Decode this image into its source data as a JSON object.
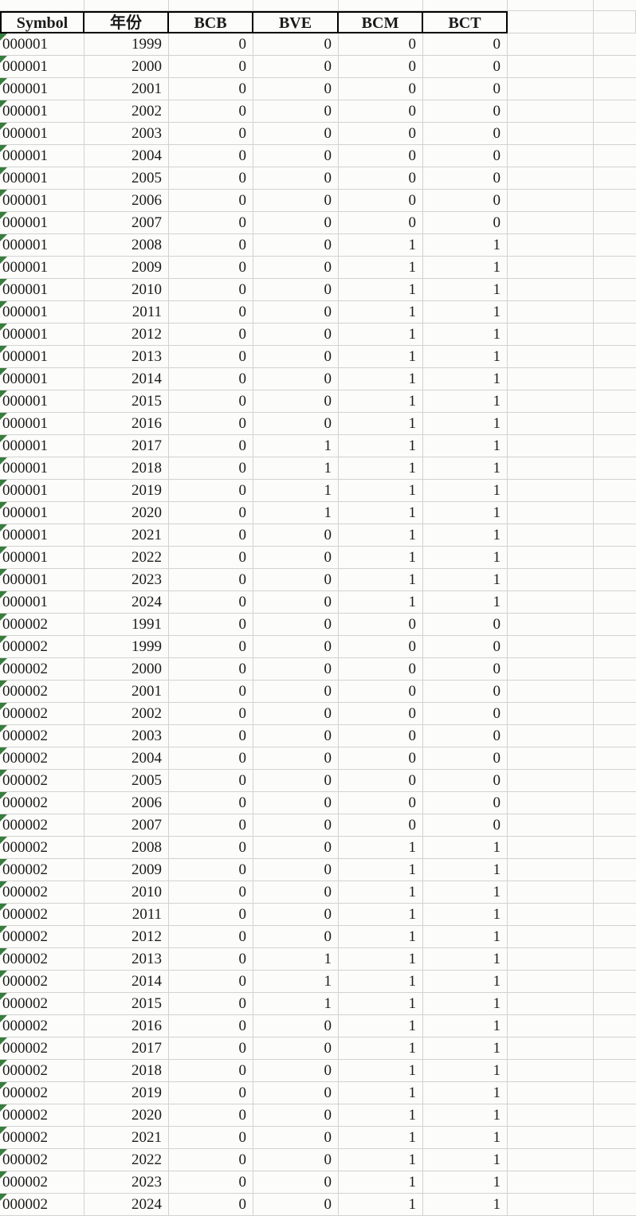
{
  "app": {
    "kind": "spreadsheet-grid"
  },
  "colors": {
    "gridline": "#d2d2d0",
    "header_border": "#000000",
    "cell_background": "#fcfcfb",
    "text": "#1b1b1b",
    "error_indicator_green": "#377d3c"
  },
  "icons": {
    "symbol_cell_corner": "green-triangle-icon"
  },
  "table": {
    "columns": [
      {
        "label": "Symbol"
      },
      {
        "label": "年份"
      },
      {
        "label": "BCB"
      },
      {
        "label": "BVE"
      },
      {
        "label": "BCM"
      },
      {
        "label": "BCT"
      }
    ],
    "rows": [
      [
        "000001",
        "1999",
        "0",
        "0",
        "0",
        "0"
      ],
      [
        "000001",
        "2000",
        "0",
        "0",
        "0",
        "0"
      ],
      [
        "000001",
        "2001",
        "0",
        "0",
        "0",
        "0"
      ],
      [
        "000001",
        "2002",
        "0",
        "0",
        "0",
        "0"
      ],
      [
        "000001",
        "2003",
        "0",
        "0",
        "0",
        "0"
      ],
      [
        "000001",
        "2004",
        "0",
        "0",
        "0",
        "0"
      ],
      [
        "000001",
        "2005",
        "0",
        "0",
        "0",
        "0"
      ],
      [
        "000001",
        "2006",
        "0",
        "0",
        "0",
        "0"
      ],
      [
        "000001",
        "2007",
        "0",
        "0",
        "0",
        "0"
      ],
      [
        "000001",
        "2008",
        "0",
        "0",
        "1",
        "1"
      ],
      [
        "000001",
        "2009",
        "0",
        "0",
        "1",
        "1"
      ],
      [
        "000001",
        "2010",
        "0",
        "0",
        "1",
        "1"
      ],
      [
        "000001",
        "2011",
        "0",
        "0",
        "1",
        "1"
      ],
      [
        "000001",
        "2012",
        "0",
        "0",
        "1",
        "1"
      ],
      [
        "000001",
        "2013",
        "0",
        "0",
        "1",
        "1"
      ],
      [
        "000001",
        "2014",
        "0",
        "0",
        "1",
        "1"
      ],
      [
        "000001",
        "2015",
        "0",
        "0",
        "1",
        "1"
      ],
      [
        "000001",
        "2016",
        "0",
        "0",
        "1",
        "1"
      ],
      [
        "000001",
        "2017",
        "0",
        "1",
        "1",
        "1"
      ],
      [
        "000001",
        "2018",
        "0",
        "1",
        "1",
        "1"
      ],
      [
        "000001",
        "2019",
        "0",
        "1",
        "1",
        "1"
      ],
      [
        "000001",
        "2020",
        "0",
        "1",
        "1",
        "1"
      ],
      [
        "000001",
        "2021",
        "0",
        "0",
        "1",
        "1"
      ],
      [
        "000001",
        "2022",
        "0",
        "0",
        "1",
        "1"
      ],
      [
        "000001",
        "2023",
        "0",
        "0",
        "1",
        "1"
      ],
      [
        "000001",
        "2024",
        "0",
        "0",
        "1",
        "1"
      ],
      [
        "000002",
        "1991",
        "0",
        "0",
        "0",
        "0"
      ],
      [
        "000002",
        "1999",
        "0",
        "0",
        "0",
        "0"
      ],
      [
        "000002",
        "2000",
        "0",
        "0",
        "0",
        "0"
      ],
      [
        "000002",
        "2001",
        "0",
        "0",
        "0",
        "0"
      ],
      [
        "000002",
        "2002",
        "0",
        "0",
        "0",
        "0"
      ],
      [
        "000002",
        "2003",
        "0",
        "0",
        "0",
        "0"
      ],
      [
        "000002",
        "2004",
        "0",
        "0",
        "0",
        "0"
      ],
      [
        "000002",
        "2005",
        "0",
        "0",
        "0",
        "0"
      ],
      [
        "000002",
        "2006",
        "0",
        "0",
        "0",
        "0"
      ],
      [
        "000002",
        "2007",
        "0",
        "0",
        "0",
        "0"
      ],
      [
        "000002",
        "2008",
        "0",
        "0",
        "1",
        "1"
      ],
      [
        "000002",
        "2009",
        "0",
        "0",
        "1",
        "1"
      ],
      [
        "000002",
        "2010",
        "0",
        "0",
        "1",
        "1"
      ],
      [
        "000002",
        "2011",
        "0",
        "0",
        "1",
        "1"
      ],
      [
        "000002",
        "2012",
        "0",
        "0",
        "1",
        "1"
      ],
      [
        "000002",
        "2013",
        "0",
        "1",
        "1",
        "1"
      ],
      [
        "000002",
        "2014",
        "0",
        "1",
        "1",
        "1"
      ],
      [
        "000002",
        "2015",
        "0",
        "1",
        "1",
        "1"
      ],
      [
        "000002",
        "2016",
        "0",
        "0",
        "1",
        "1"
      ],
      [
        "000002",
        "2017",
        "0",
        "0",
        "1",
        "1"
      ],
      [
        "000002",
        "2018",
        "0",
        "0",
        "1",
        "1"
      ],
      [
        "000002",
        "2019",
        "0",
        "0",
        "1",
        "1"
      ],
      [
        "000002",
        "2020",
        "0",
        "0",
        "1",
        "1"
      ],
      [
        "000002",
        "2021",
        "0",
        "0",
        "1",
        "1"
      ],
      [
        "000002",
        "2022",
        "0",
        "0",
        "1",
        "1"
      ],
      [
        "000002",
        "2023",
        "0",
        "0",
        "1",
        "1"
      ],
      [
        "000002",
        "2024",
        "0",
        "0",
        "1",
        "1"
      ]
    ]
  }
}
